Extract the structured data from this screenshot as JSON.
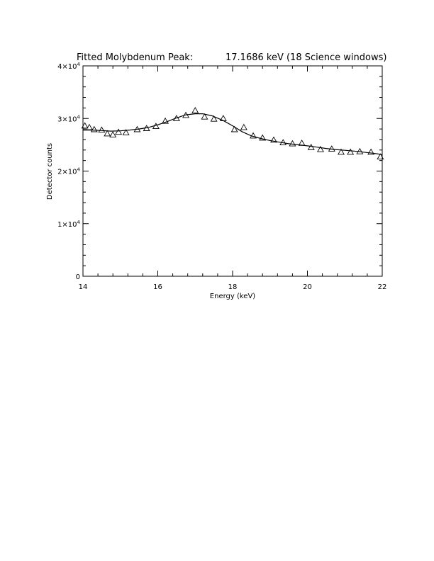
{
  "chart_data": {
    "type": "scatter",
    "title_left": "Fitted Molybdenum Peak:",
    "title_right": "17.1686 keV (18 Science windows)",
    "xlabel": "Energy (keV)",
    "ylabel": "Detector counts",
    "xlim": [
      14,
      22
    ],
    "ylim": [
      0,
      40000
    ],
    "x_ticks": [
      {
        "value": 14,
        "label": "14"
      },
      {
        "value": 16,
        "label": "16"
      },
      {
        "value": 18,
        "label": "18"
      },
      {
        "value": 20,
        "label": "20"
      },
      {
        "value": 22,
        "label": "22"
      }
    ],
    "y_ticks": [
      {
        "value": 0,
        "mantissa": "0",
        "exp": ""
      },
      {
        "value": 10000,
        "mantissa": "1×10",
        "exp": "4"
      },
      {
        "value": 20000,
        "mantissa": "2×10",
        "exp": "4"
      },
      {
        "value": 30000,
        "mantissa": "3×10",
        "exp": "4"
      },
      {
        "value": 40000,
        "mantissa": "4×10",
        "exp": "4"
      }
    ],
    "series": [
      {
        "kind": "points",
        "marker": "triangle",
        "x": [
          14.05,
          14.17,
          14.3,
          14.5,
          14.65,
          14.8,
          14.95,
          15.15,
          15.45,
          15.7,
          15.95,
          16.2,
          16.5,
          16.75,
          17.0,
          17.25,
          17.5,
          17.75,
          18.05,
          18.3,
          18.55,
          18.8,
          19.1,
          19.35,
          19.6,
          19.85,
          20.1,
          20.35,
          20.65,
          20.9,
          21.15,
          21.4,
          21.7,
          21.95
        ],
        "y": [
          28600,
          28300,
          27900,
          27800,
          27100,
          26900,
          27400,
          27300,
          27900,
          28100,
          28500,
          29500,
          30000,
          30600,
          31500,
          30300,
          29900,
          30000,
          27900,
          28300,
          26700,
          26300,
          25900,
          25400,
          25200,
          25300,
          24500,
          24100,
          24200,
          23600,
          23600,
          23700,
          23600,
          22700
        ]
      },
      {
        "kind": "line",
        "x": [
          14.0,
          14.25,
          14.5,
          14.75,
          15.0,
          15.25,
          15.5,
          15.75,
          16.0,
          16.25,
          16.5,
          16.75,
          17.0,
          17.2,
          17.45,
          17.75,
          18.0,
          18.25,
          18.5,
          18.75,
          19.0,
          19.25,
          19.5,
          19.75,
          20.0,
          20.25,
          20.5,
          20.75,
          21.0,
          21.25,
          21.5,
          21.75,
          22.0
        ],
        "y": [
          27800,
          27800,
          27700,
          27600,
          27650,
          27800,
          28000,
          28300,
          28800,
          29400,
          30100,
          30700,
          30900,
          30900,
          30500,
          29600,
          28600,
          27500,
          26700,
          26200,
          25800,
          25500,
          25200,
          25000,
          24800,
          24550,
          24300,
          24100,
          23950,
          23800,
          23600,
          23400,
          23150
        ]
      }
    ]
  }
}
